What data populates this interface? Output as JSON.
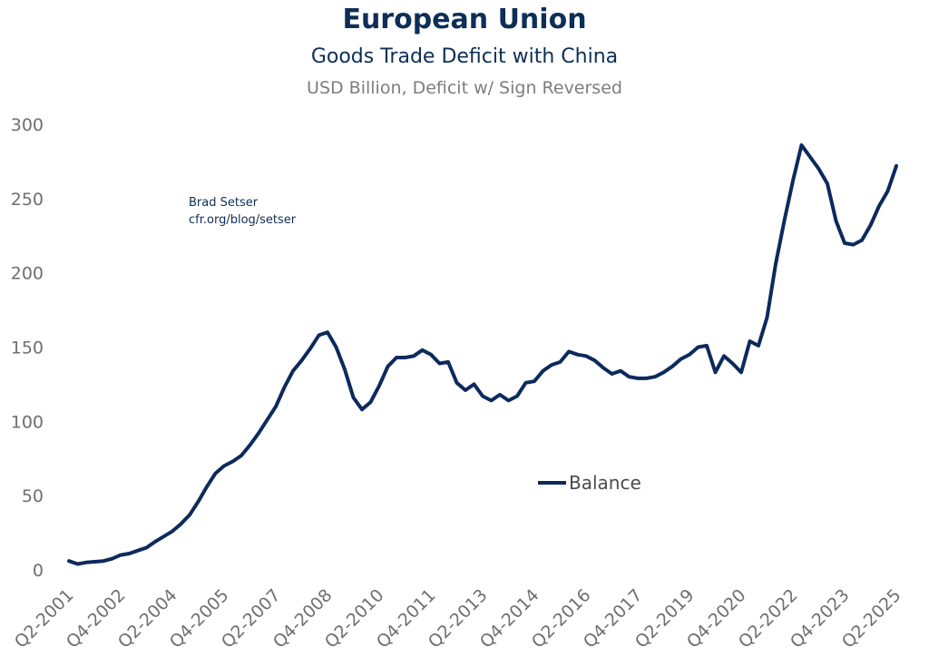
{
  "chart_data": {
    "type": "line",
    "title": "European Union",
    "subtitle": "Goods Trade Deficit with China",
    "units_label": "USD Billion, Deficit w/ Sign Reversed",
    "annotation": [
      "Brad Setser",
      "cfr.org/blog/setser"
    ],
    "ylim": [
      0,
      300
    ],
    "yticks": [
      0,
      50,
      100,
      150,
      200,
      250,
      300
    ],
    "x_tick_labels": [
      "Q2-2001",
      "Q4-2002",
      "Q2-2004",
      "Q4-2005",
      "Q2-2007",
      "Q4-2008",
      "Q2-2010",
      "Q4-2011",
      "Q2-2013",
      "Q4-2014",
      "Q2-2016",
      "Q4-2017",
      "Q2-2019",
      "Q4-2020",
      "Q2-2022",
      "Q4-2023",
      "Q2-2025"
    ],
    "grid": false,
    "legend_position": "center-right",
    "colors": {
      "line": "#0d2a5c"
    },
    "series": [
      {
        "name": "Balance",
        "x": [
          "Q2-2001",
          "Q3-2001",
          "Q4-2001",
          "Q1-2002",
          "Q2-2002",
          "Q3-2002",
          "Q4-2002",
          "Q1-2003",
          "Q2-2003",
          "Q3-2003",
          "Q4-2003",
          "Q1-2004",
          "Q2-2004",
          "Q3-2004",
          "Q4-2004",
          "Q1-2005",
          "Q2-2005",
          "Q3-2005",
          "Q4-2005",
          "Q1-2006",
          "Q2-2006",
          "Q3-2006",
          "Q4-2006",
          "Q1-2007",
          "Q2-2007",
          "Q3-2007",
          "Q4-2007",
          "Q1-2008",
          "Q2-2008",
          "Q3-2008",
          "Q4-2008",
          "Q1-2009",
          "Q2-2009",
          "Q3-2009",
          "Q4-2009",
          "Q1-2010",
          "Q2-2010",
          "Q3-2010",
          "Q4-2010",
          "Q1-2011",
          "Q2-2011",
          "Q3-2011",
          "Q4-2011",
          "Q1-2012",
          "Q2-2012",
          "Q3-2012",
          "Q4-2012",
          "Q1-2013",
          "Q2-2013",
          "Q3-2013",
          "Q4-2013",
          "Q1-2014",
          "Q2-2014",
          "Q3-2014",
          "Q4-2014",
          "Q1-2015",
          "Q2-2015",
          "Q3-2015",
          "Q4-2015",
          "Q1-2016",
          "Q2-2016",
          "Q3-2016",
          "Q4-2016",
          "Q1-2017",
          "Q2-2017",
          "Q3-2017",
          "Q4-2017",
          "Q1-2018",
          "Q2-2018",
          "Q3-2018",
          "Q4-2018",
          "Q1-2019",
          "Q2-2019",
          "Q3-2019",
          "Q4-2019",
          "Q1-2020",
          "Q2-2020",
          "Q3-2020",
          "Q4-2020",
          "Q1-2021",
          "Q2-2021",
          "Q3-2021",
          "Q4-2021",
          "Q1-2022",
          "Q2-2022",
          "Q3-2022",
          "Q4-2022",
          "Q1-2023",
          "Q2-2023",
          "Q3-2023",
          "Q4-2023",
          "Q1-2024",
          "Q2-2024",
          "Q3-2024",
          "Q4-2024",
          "Q1-2025",
          "Q2-2025"
        ],
        "values": [
          6,
          4,
          5,
          5.5,
          6,
          7.5,
          10,
          11,
          13,
          15,
          19,
          22.5,
          26,
          31,
          37,
          46,
          56,
          65,
          70,
          73,
          77,
          84,
          92,
          101,
          110,
          123,
          134,
          141,
          149,
          158,
          160,
          150,
          135,
          116,
          108,
          113,
          124,
          137,
          143,
          143,
          144,
          148,
          145,
          139,
          140,
          126,
          121,
          125,
          117,
          114,
          118,
          114,
          117,
          126,
          127,
          134,
          138,
          140,
          147,
          145,
          144,
          141,
          136,
          132,
          134,
          130,
          129,
          129,
          130,
          133,
          137,
          142,
          145,
          150,
          151,
          133,
          144,
          139,
          133,
          154,
          151,
          170,
          206,
          235,
          262,
          286,
          278,
          270,
          260,
          235,
          220,
          219,
          222,
          232,
          245,
          255,
          272
        ]
      }
    ]
  }
}
